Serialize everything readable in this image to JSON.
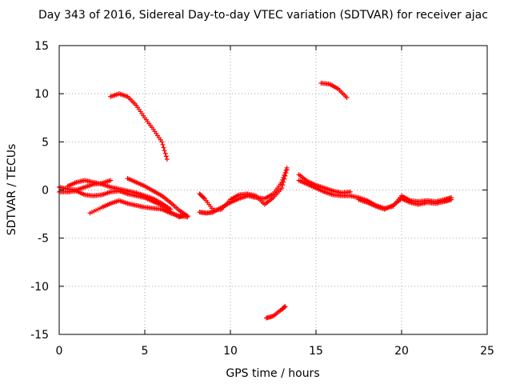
{
  "chart_data": {
    "type": "scatter",
    "title": "Day 343 of 2016, Sidereal Day-to-day VTEC variation (SDTVAR) for receiver ajac",
    "xlabel": "GPS time / hours",
    "ylabel": "SDTVAR / TECUs",
    "xlim": [
      0,
      25
    ],
    "ylim": [
      -15,
      15
    ],
    "xticks": [
      0,
      5,
      10,
      15,
      20,
      25
    ],
    "xtick_labels": [
      "0",
      "5",
      "10",
      "15",
      "20",
      "25"
    ],
    "yticks": [
      -15,
      -10,
      -5,
      0,
      5,
      10,
      15
    ],
    "ytick_labels": [
      "-15",
      "-10",
      "-5",
      "0",
      "5",
      "10",
      "15"
    ],
    "grid": true,
    "marker": "+",
    "color": "#ff0000",
    "series": [
      {
        "name": "arc-1",
        "x": [
          3.0,
          3.5,
          4.0,
          4.5,
          5.0,
          5.5,
          6.0,
          6.3
        ],
        "y": [
          9.7,
          10.0,
          9.7,
          8.8,
          7.5,
          6.3,
          5.0,
          3.2
        ]
      },
      {
        "name": "arc-2",
        "x": [
          15.3,
          15.8,
          16.3,
          16.8
        ],
        "y": [
          11.1,
          11.0,
          10.5,
          9.6
        ]
      },
      {
        "name": "arc-3",
        "x": [
          12.1,
          12.5,
          13.0,
          13.2
        ],
        "y": [
          -13.3,
          -13.1,
          -12.4,
          -12.1
        ]
      },
      {
        "name": "arc-4",
        "x": [
          0.0,
          0.5,
          1.0,
          1.5,
          2.0,
          2.5,
          3.0,
          3.5,
          4.0,
          4.5,
          5.0,
          5.5,
          6.0,
          6.5,
          7.0,
          7.3
        ],
        "y": [
          -0.2,
          -0.2,
          -0.1,
          -0.5,
          -0.6,
          -0.5,
          -0.2,
          -0.1,
          -0.4,
          -0.6,
          -0.8,
          -1.2,
          -1.6,
          -2.3,
          -2.8,
          -2.6
        ]
      },
      {
        "name": "arc-5",
        "x": [
          0.0,
          0.5,
          1.0,
          1.5,
          2.0,
          2.5,
          3.0
        ],
        "y": [
          0.3,
          0.1,
          0.0,
          0.3,
          0.6,
          0.7,
          1.0
        ]
      },
      {
        "name": "arc-6",
        "x": [
          0.5,
          1.0,
          1.5,
          2.0,
          2.5,
          3.0,
          3.5,
          4.0,
          4.5,
          5.0,
          5.5,
          6.0,
          6.5
        ],
        "y": [
          0.4,
          0.8,
          1.0,
          0.8,
          0.6,
          0.3,
          0.1,
          -0.1,
          -0.3,
          -0.6,
          -0.9,
          -1.4,
          -2.0
        ]
      },
      {
        "name": "arc-7",
        "x": [
          1.8,
          2.5,
          3.0,
          3.5,
          4.0,
          4.5,
          5.0,
          5.5,
          6.0,
          6.5,
          7.0,
          7.5
        ],
        "y": [
          -2.4,
          -1.8,
          -1.4,
          -1.1,
          -1.4,
          -1.6,
          -1.8,
          -1.9,
          -2.0,
          -2.4,
          -2.7,
          -2.8
        ]
      },
      {
        "name": "arc-8",
        "x": [
          4.0,
          4.5,
          5.0,
          5.5,
          6.0,
          6.5,
          7.0,
          7.5
        ],
        "y": [
          1.2,
          0.8,
          0.4,
          -0.1,
          -0.6,
          -1.3,
          -2.1,
          -2.7
        ]
      },
      {
        "name": "arc-9",
        "x": [
          8.2,
          8.5,
          9.0,
          9.5,
          10.0,
          10.5,
          11.0,
          11.5,
          12.0,
          12.5,
          13.0,
          13.3
        ],
        "y": [
          -0.4,
          -0.9,
          -2.1,
          -2.0,
          -1.0,
          -0.5,
          -0.4,
          -0.6,
          -1.5,
          -0.8,
          0.2,
          2.1
        ]
      },
      {
        "name": "arc-10",
        "x": [
          8.2,
          8.6,
          9.0,
          9.5,
          10.0,
          10.5,
          11.0,
          11.5,
          12.0,
          12.5,
          13.0,
          13.3
        ],
        "y": [
          -2.3,
          -2.4,
          -2.3,
          -1.8,
          -1.3,
          -0.9,
          -0.6,
          -0.8,
          -0.9,
          -0.4,
          0.8,
          2.3
        ]
      },
      {
        "name": "arc-11",
        "x": [
          14.0,
          14.5,
          15.0,
          15.5,
          16.0,
          16.5,
          17.0
        ],
        "y": [
          1.6,
          0.9,
          0.5,
          0.2,
          -0.1,
          -0.3,
          -0.2
        ]
      },
      {
        "name": "arc-12",
        "x": [
          14.0,
          14.5,
          15.0,
          15.5,
          16.0,
          16.5,
          17.0,
          17.5,
          18.0,
          18.5,
          19.0,
          19.5,
          20.0,
          20.5,
          21.0,
          21.5,
          22.0,
          22.5,
          22.9
        ],
        "y": [
          1.0,
          0.6,
          0.2,
          -0.2,
          -0.5,
          -0.6,
          -0.6,
          -0.8,
          -1.1,
          -1.6,
          -1.9,
          -1.7,
          -0.6,
          -1.1,
          -1.2,
          -1.1,
          -1.2,
          -1.0,
          -0.8
        ]
      },
      {
        "name": "arc-13",
        "x": [
          17.5,
          18.0,
          18.5,
          19.0,
          19.5,
          20.0,
          20.5,
          21.0,
          21.5,
          22.0,
          22.5,
          22.9
        ],
        "y": [
          -1.0,
          -1.3,
          -1.7,
          -2.0,
          -1.6,
          -0.9,
          -1.3,
          -1.5,
          -1.3,
          -1.4,
          -1.2,
          -1.0
        ]
      }
    ]
  }
}
